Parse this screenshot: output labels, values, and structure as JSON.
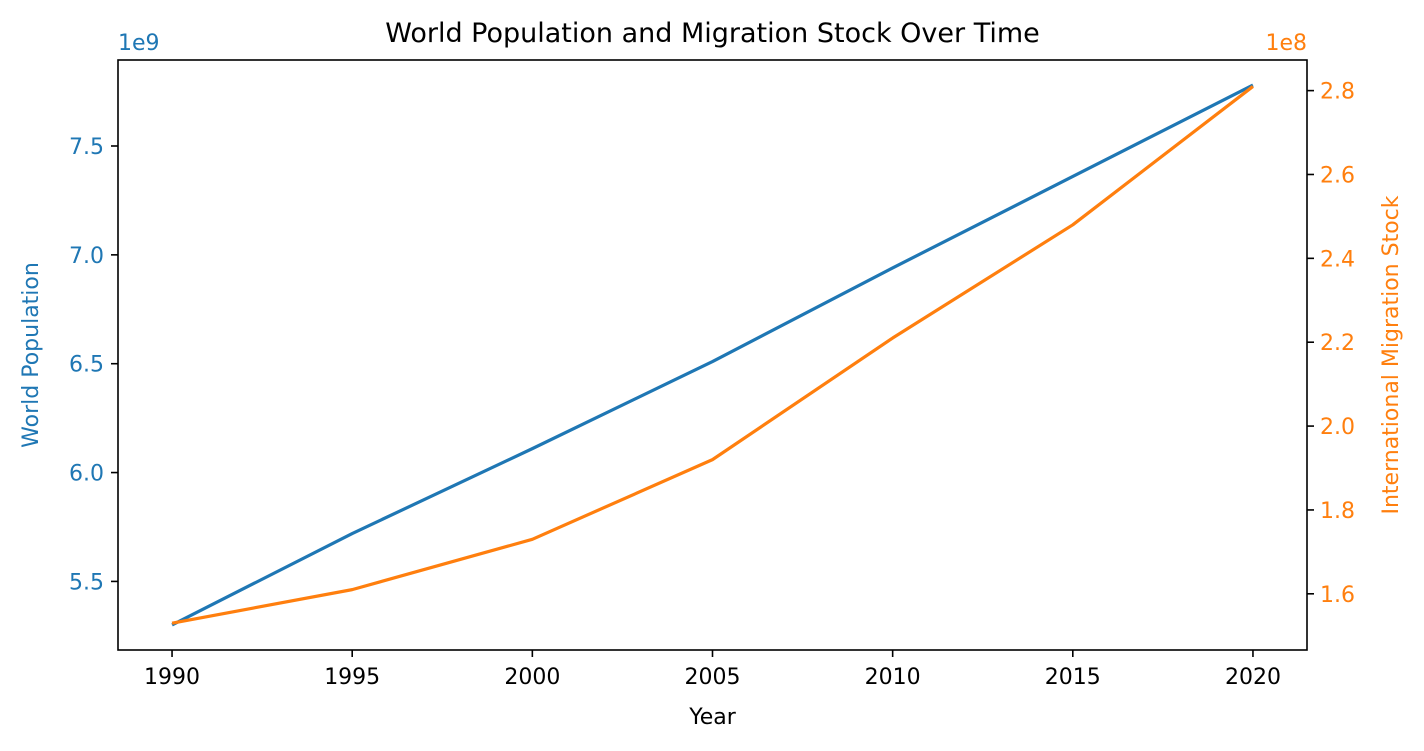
{
  "chart_data": {
    "type": "line",
    "title": "World Population and Migration Stock Over Time",
    "xlabel": "Year",
    "x": [
      1990,
      1995,
      2000,
      2005,
      2010,
      2015,
      2020
    ],
    "xlim": [
      1988.5,
      2021.5
    ],
    "x_ticks": [
      "1990",
      "1995",
      "2000",
      "2005",
      "2010",
      "2015",
      "2020"
    ],
    "grid": false,
    "left_axis": {
      "label": "World Population",
      "color": "#1f77b4",
      "offset_text": "1e9",
      "ylim": [
        5.185,
        7.895
      ],
      "ticks": [
        5.5,
        6.0,
        6.5,
        7.0,
        7.5
      ],
      "tick_labels": [
        "5.5",
        "6.0",
        "6.5",
        "7.0",
        "7.5"
      ]
    },
    "right_axis": {
      "label": "International Migration Stock",
      "color": "#ff7f0e",
      "offset_text": "1e8",
      "ylim": [
        1.466,
        2.873
      ],
      "ticks": [
        1.6,
        1.8,
        2.0,
        2.2,
        2.4,
        2.6,
        2.8
      ],
      "tick_labels": [
        "1.6",
        "1.8",
        "2.0",
        "2.2",
        "2.4",
        "2.6",
        "2.8"
      ]
    },
    "series": [
      {
        "axis": "left",
        "color": "#1f77b4",
        "values": [
          5.3,
          5.72,
          6.11,
          6.51,
          6.94,
          7.36,
          7.78
        ]
      },
      {
        "axis": "right",
        "color": "#ff7f0e",
        "values": [
          1.53,
          1.61,
          1.73,
          1.92,
          2.21,
          2.48,
          2.81
        ]
      }
    ]
  }
}
